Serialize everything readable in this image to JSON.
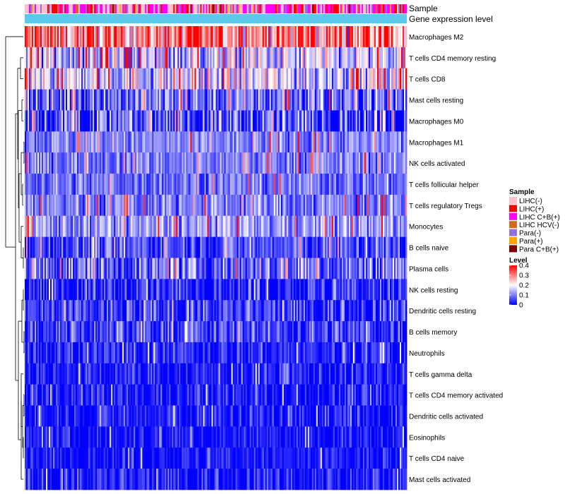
{
  "chart_data": {
    "type": "heatmap",
    "annotation_labels": {
      "sample": "Sample",
      "gene_expression": "Gene expression level"
    },
    "rows": [
      {
        "label": "Macrophages M2",
        "mean": 0.3,
        "spread": 0.09
      },
      {
        "label": "T cells CD4 memory resting",
        "mean": 0.15,
        "spread": 0.08
      },
      {
        "label": "T cells CD8",
        "mean": 0.17,
        "spread": 0.08
      },
      {
        "label": "Mast cells resting",
        "mean": 0.09,
        "spread": 0.07
      },
      {
        "label": "Macrophages M0",
        "mean": 0.06,
        "spread": 0.08
      },
      {
        "label": "Macrophages M1",
        "mean": 0.1,
        "spread": 0.04
      },
      {
        "label": "NK cells activated",
        "mean": 0.1,
        "spread": 0.04
      },
      {
        "label": "T cells follicular helper",
        "mean": 0.09,
        "spread": 0.04
      },
      {
        "label": "T cells regulatory  Tregs",
        "mean": 0.1,
        "spread": 0.05
      },
      {
        "label": "Monocytes",
        "mean": 0.12,
        "spread": 0.05
      },
      {
        "label": "B cells naive",
        "mean": 0.06,
        "spread": 0.05
      },
      {
        "label": "Plasma cells",
        "mean": 0.08,
        "spread": 0.06
      },
      {
        "label": "NK cells resting",
        "mean": 0.03,
        "spread": 0.05
      },
      {
        "label": "Dendritic cells resting",
        "mean": 0.04,
        "spread": 0.05
      },
      {
        "label": "B cells memory",
        "mean": 0.05,
        "spread": 0.05
      },
      {
        "label": "Neutrophils",
        "mean": 0.03,
        "spread": 0.04
      },
      {
        "label": "T cells gamma delta",
        "mean": 0.02,
        "spread": 0.04
      },
      {
        "label": "T cells CD4 memory activated",
        "mean": 0.015,
        "spread": 0.04
      },
      {
        "label": "Dendritic cells activated",
        "mean": 0.02,
        "spread": 0.04
      },
      {
        "label": "Eosinophils",
        "mean": 0.015,
        "spread": 0.03
      },
      {
        "label": "T cells CD4 naive",
        "mean": 0.015,
        "spread": 0.03
      },
      {
        "label": "Mast cells activated",
        "mean": 0.02,
        "spread": 0.04
      }
    ],
    "n_samples": 270,
    "color_scale": {
      "stops": [
        0,
        0.2,
        0.4
      ],
      "colors": [
        "#0000ff",
        "#ffffff",
        "#ff0000"
      ]
    },
    "sample_groups": [
      {
        "name": "LIHC(-)",
        "color": "#ffc0cb"
      },
      {
        "name": "LIHC(+)",
        "color": "#ff0000"
      },
      {
        "name": "LIHC C+B(+)",
        "color": "#ff00ff"
      },
      {
        "name": "LIHC HCV(-)",
        "color": "#d2691e"
      },
      {
        "name": "Para(-)",
        "color": "#9370db"
      },
      {
        "name": "Para(+)",
        "color": "#ffa500"
      },
      {
        "name": "Para C+B(+)",
        "color": "#800000"
      }
    ],
    "gene_expression_color": "#5bc8ec",
    "legend": {
      "sample_title": "Sample",
      "level_title": "Level",
      "level_ticks": [
        {
          "value": 0.4,
          "label": "0.4"
        },
        {
          "value": 0.3,
          "label": "0.3"
        },
        {
          "value": 0.2,
          "label": "0.2"
        },
        {
          "value": 0.1,
          "label": "0.1"
        },
        {
          "value": 0,
          "label": "0"
        }
      ]
    }
  }
}
